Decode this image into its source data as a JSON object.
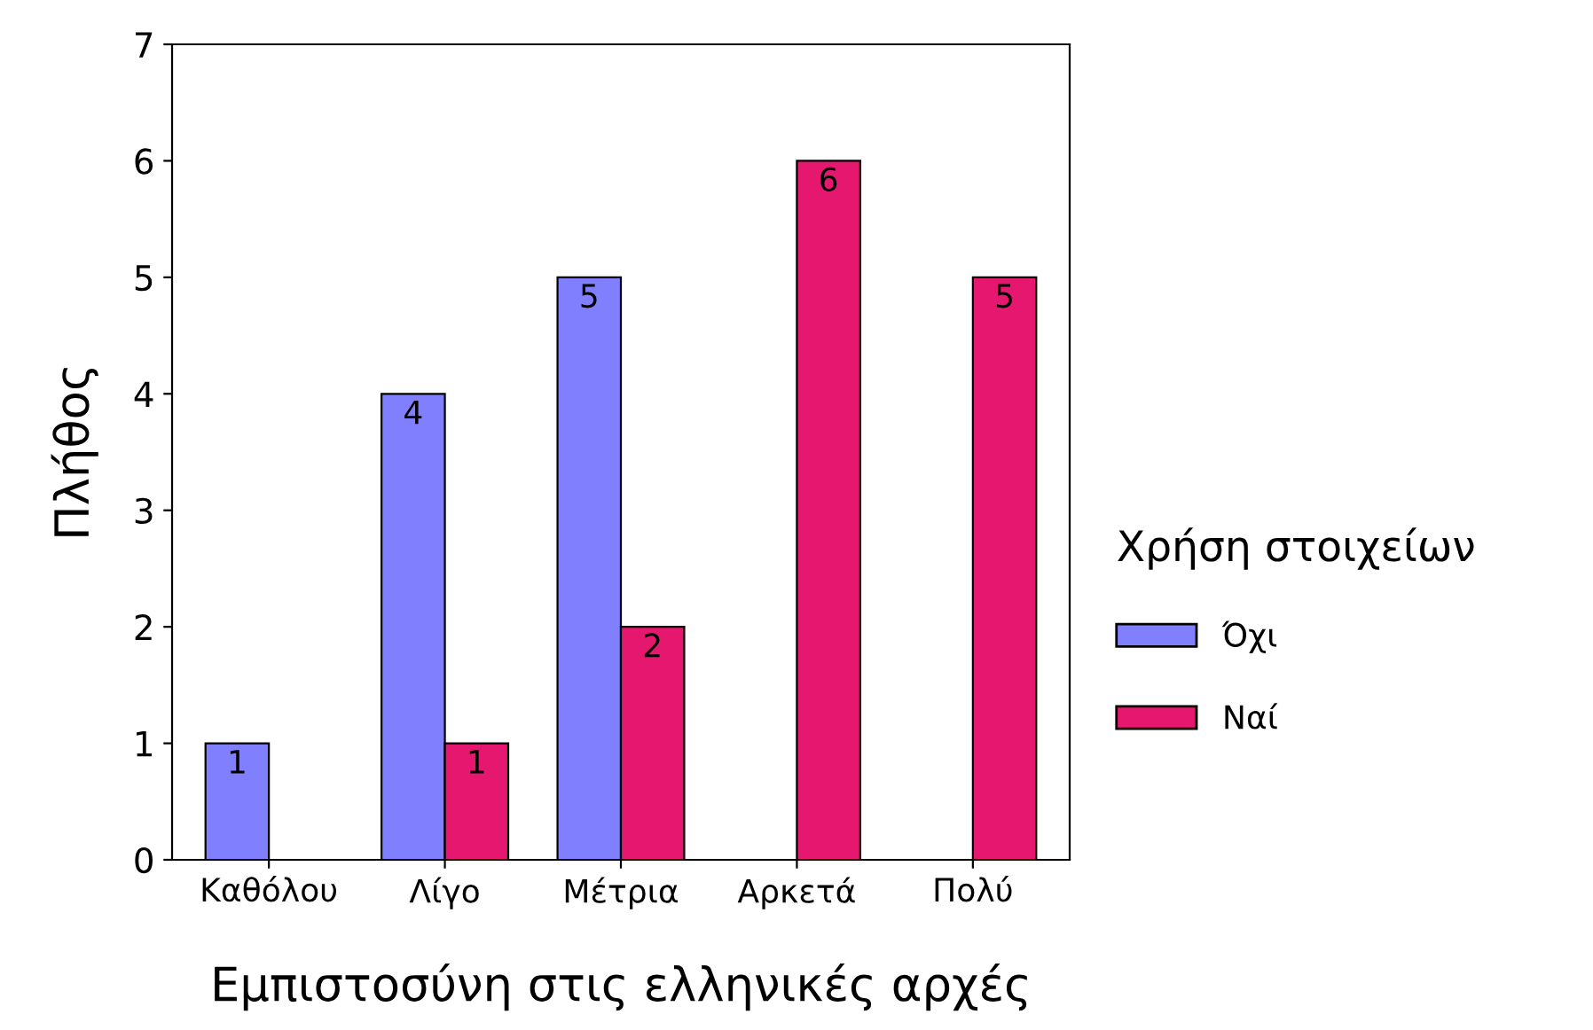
{
  "chart_data": {
    "type": "bar",
    "xlabel": "Εμπιστοσύνη στις ελληνικές αρχές",
    "ylabel": "Πλήθος",
    "legend_title": "Χρήση στοιχείων",
    "categories": [
      "Καθόλου",
      "Λίγο",
      "Μέτρια",
      "Αρκετά",
      "Πολύ"
    ],
    "series": [
      {
        "name": "Όχι",
        "color": "#8080ff",
        "values": [
          1,
          4,
          5,
          null,
          null
        ]
      },
      {
        "name": "Ναί",
        "color": "#e6176e",
        "values": [
          null,
          1,
          2,
          6,
          5
        ]
      }
    ],
    "ylim": [
      0,
      7
    ],
    "yticks": [
      0,
      1,
      2,
      3,
      4,
      5,
      6,
      7
    ],
    "grid": false,
    "legend": "right",
    "data_labels": true
  }
}
